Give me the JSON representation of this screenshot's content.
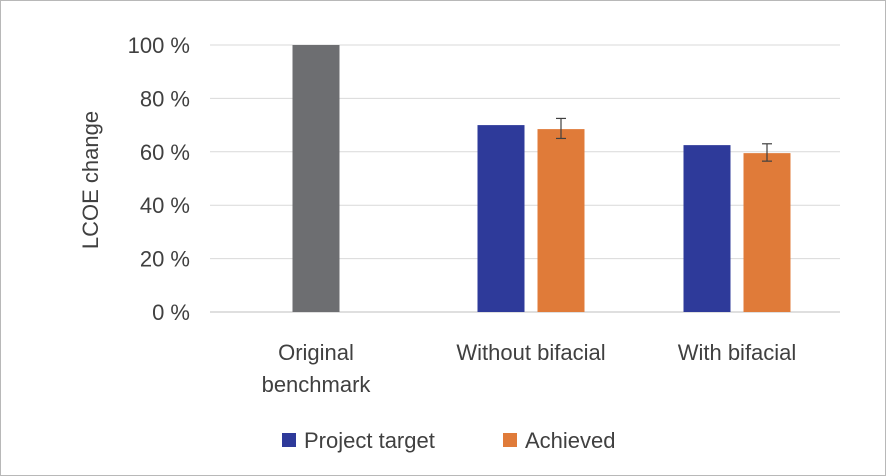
{
  "chart_data": {
    "type": "bar",
    "title": "",
    "ylabel": "LCOE change",
    "xlabel": "",
    "ylim": [
      0,
      100
    ],
    "y_ticks": [
      {
        "value": 0,
        "label": "0 %"
      },
      {
        "value": 20,
        "label": "20 %"
      },
      {
        "value": 40,
        "label": "40 %"
      },
      {
        "value": 60,
        "label": "60 %"
      },
      {
        "value": 80,
        "label": "80 %"
      },
      {
        "value": 100,
        "label": "100 %"
      }
    ],
    "categories": [
      {
        "label_lines": [
          "Original",
          "benchmark"
        ]
      },
      {
        "label_lines": [
          "Without bifacial"
        ]
      },
      {
        "label_lines": [
          "With bifacial"
        ]
      }
    ],
    "bars": [
      {
        "category": 0,
        "slot": "center",
        "value": 100,
        "series": null
      },
      {
        "category": 1,
        "slot": "left",
        "value": 70,
        "series": 0
      },
      {
        "category": 1,
        "slot": "right",
        "value": 68.5,
        "series": 1,
        "error": [
          65,
          72.5
        ]
      },
      {
        "category": 2,
        "slot": "left",
        "value": 62.5,
        "series": 0
      },
      {
        "category": 2,
        "slot": "right",
        "value": 59.5,
        "series": 1,
        "error": [
          56.5,
          63
        ]
      }
    ],
    "series": [
      {
        "name": "Project target",
        "color": "#2e3a9a"
      },
      {
        "name": "Achieved",
        "color": "#e07b39"
      }
    ],
    "benchmark_color": "#6d6e71",
    "grid": true,
    "legend_position": "bottom"
  }
}
